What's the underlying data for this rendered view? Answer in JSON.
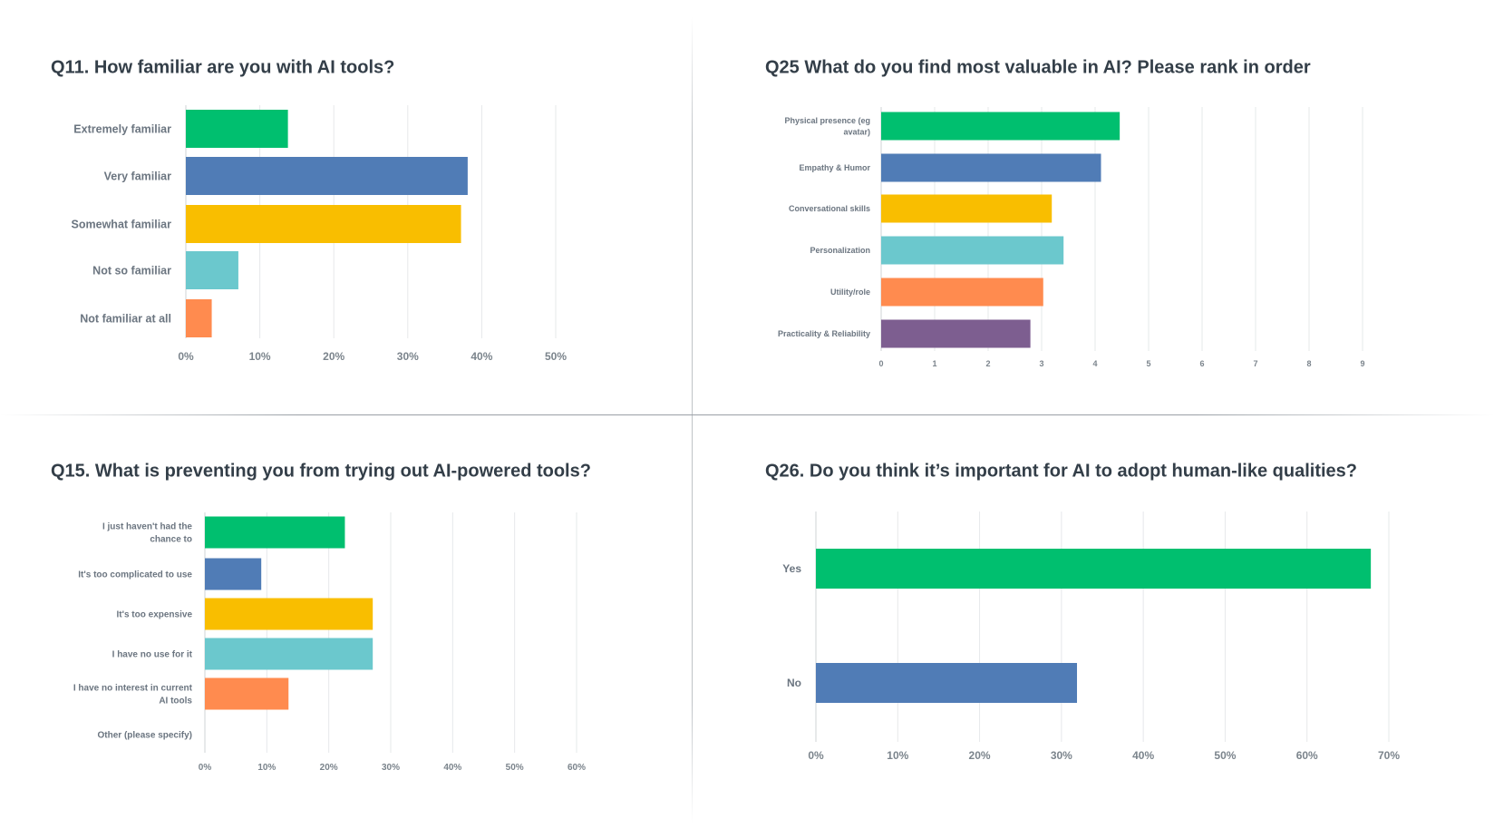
{
  "chart_data": [
    {
      "type": "bar",
      "orientation": "horizontal",
      "title": "Q11. How familiar are you with AI tools?",
      "categories": [
        "Extremely familiar",
        "Very familiar",
        "Somewhat familiar",
        "Not so familiar",
        "Not familiar at all"
      ],
      "values": [
        13.8,
        38.1,
        37.2,
        7.1,
        3.5
      ],
      "colors": [
        "#00bf6f",
        "#507cb6",
        "#f9be00",
        "#6bc8cd",
        "#ff8b4f"
      ],
      "xlim": [
        0,
        50
      ],
      "xticks": [
        "0%",
        "10%",
        "20%",
        "30%",
        "40%",
        "50%"
      ],
      "grid": true
    },
    {
      "type": "bar",
      "orientation": "horizontal",
      "title": "Q25 What do you find most valuable in AI? Please rank in order",
      "categories": [
        [
          "Physical presence (eg",
          "avatar)"
        ],
        "Empathy & Humor",
        "Conversational skills",
        "Personalization",
        "Utility/role",
        "Practicality & Reliability"
      ],
      "values": [
        4.46,
        4.11,
        3.19,
        3.41,
        3.03,
        2.79
      ],
      "colors": [
        "#00bf6f",
        "#507cb6",
        "#f9be00",
        "#6bc8cd",
        "#ff8b4f",
        "#7d5e90"
      ],
      "xlim": [
        0,
        9
      ],
      "xticks": [
        "0",
        "1",
        "2",
        "3",
        "4",
        "5",
        "6",
        "7",
        "8",
        "9"
      ],
      "grid": true
    },
    {
      "type": "bar",
      "orientation": "horizontal",
      "title": "Q15. What is preventing you from trying out AI-powered tools?",
      "categories": [
        [
          "I just haven't had the",
          "chance to"
        ],
        "It's too complicated to use",
        "It's too expensive",
        "I have no use for it",
        [
          "I have no interest in current",
          "AI tools"
        ],
        "Other (please specify)"
      ],
      "values": [
        22.6,
        9.1,
        27.1,
        27.1,
        13.5,
        0
      ],
      "colors": [
        "#00bf6f",
        "#507cb6",
        "#f9be00",
        "#6bc8cd",
        "#ff8b4f",
        "#7d5e90"
      ],
      "xlim": [
        0,
        60
      ],
      "xticks": [
        "0%",
        "10%",
        "20%",
        "30%",
        "40%",
        "50%",
        "60%"
      ],
      "grid": true
    },
    {
      "type": "bar",
      "orientation": "horizontal",
      "title": "Q26. Do you think it’s important for AI to adopt human-like qualities?",
      "categories": [
        "Yes",
        "No"
      ],
      "values": [
        67.8,
        31.9
      ],
      "colors": [
        "#00bf6f",
        "#507cb6"
      ],
      "xlim": [
        0,
        70
      ],
      "xticks": [
        "0%",
        "10%",
        "20%",
        "30%",
        "40%",
        "50%",
        "60%",
        "70%"
      ],
      "grid": true
    }
  ]
}
